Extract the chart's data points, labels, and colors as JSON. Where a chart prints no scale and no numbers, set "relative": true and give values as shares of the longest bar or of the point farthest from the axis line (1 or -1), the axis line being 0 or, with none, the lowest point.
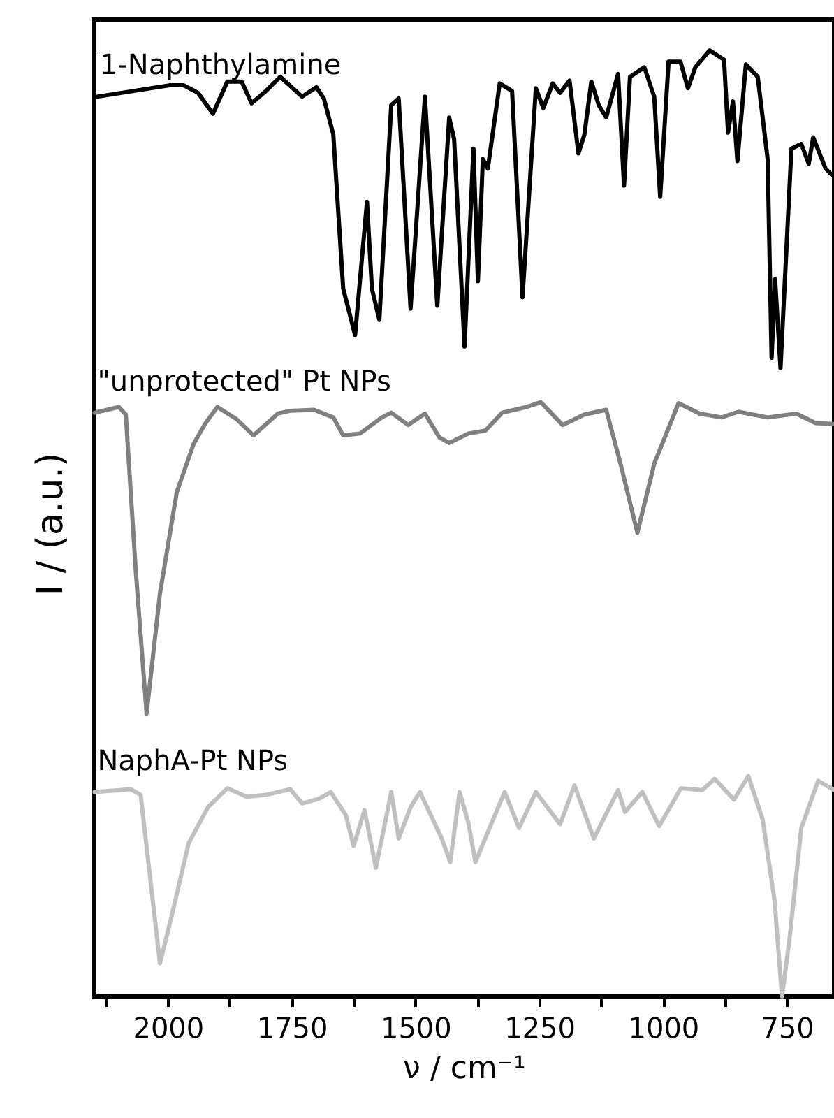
{
  "chart_data": {
    "type": "line",
    "relative": true,
    "xlabel": "ν / cm⁻¹",
    "ylabel": "I / (a.u.)",
    "xlim": [
      2150,
      655
    ],
    "xticks": [
      {
        "value": 2125,
        "label": null
      },
      2000,
      {
        "value": 1875,
        "label": null
      },
      1750,
      {
        "value": 1625,
        "label": null
      },
      1500,
      {
        "value": 1375,
        "label": null
      },
      1250,
      {
        "value": 1125,
        "label": null
      },
      1000,
      {
        "value": 875,
        "label": null
      },
      750
    ],
    "grid": false,
    "marker": "none",
    "line_style": "solid",
    "series": [
      {
        "name": "1-Naphthylamine",
        "color": "#000000",
        "x": [
          2143,
          1997,
          1968,
          1939,
          1909,
          1880,
          1851,
          1831,
          1802,
          1773,
          1729,
          1700,
          1685,
          1666,
          1646,
          1622,
          1598,
          1588,
          1573,
          1549,
          1534,
          1510,
          1481,
          1456,
          1432,
          1422,
          1401,
          1383,
          1374,
          1364,
          1354,
          1330,
          1305,
          1284,
          1257,
          1242,
          1223,
          1208,
          1189,
          1171,
          1159,
          1145,
          1130,
          1115,
          1091,
          1079,
          1067,
          1038,
          1018,
          1006,
          989,
          965,
          950,
          935,
          906,
          877,
          869,
          859,
          850,
          833,
          809,
          789,
          781,
          774,
          763,
          741,
          721,
          706,
          697,
          672,
          655
        ],
        "values": [
          0.951,
          0.963,
          0.963,
          0.955,
          0.933,
          0.967,
          0.967,
          0.944,
          0.957,
          0.972,
          0.951,
          0.961,
          0.949,
          0.911,
          0.748,
          0.699,
          0.84,
          0.748,
          0.715,
          0.942,
          0.949,
          0.727,
          0.951,
          0.73,
          0.929,
          0.906,
          0.687,
          0.896,
          0.756,
          0.885,
          0.875,
          0.965,
          0.957,
          0.739,
          0.96,
          0.939,
          0.965,
          0.955,
          0.968,
          0.891,
          0.911,
          0.967,
          0.942,
          0.929,
          0.975,
          0.857,
          0.972,
          0.982,
          0.951,
          0.845,
          0.988,
          0.988,
          0.96,
          0.982,
          1.0,
          0.99,
          0.913,
          0.946,
          0.883,
          0.985,
          0.972,
          0.885,
          0.675,
          0.758,
          0.664,
          0.896,
          0.901,
          0.88,
          0.908,
          0.875,
          0.866
        ]
      },
      {
        "name": "\"unprotected\" Pt NPs",
        "color": "#808080",
        "x": [
          2148,
          2099,
          2085,
          2065,
          2043,
          2016,
          1982,
          1948,
          1924,
          1900,
          1861,
          1827,
          1778,
          1753,
          1705,
          1666,
          1646,
          1612,
          1568,
          1549,
          1515,
          1481,
          1452,
          1432,
          1393,
          1359,
          1325,
          1276,
          1247,
          1203,
          1159,
          1115,
          1086,
          1052,
          1018,
          969,
          926,
          882,
          848,
          789,
          731,
          692,
          655
        ],
        "values": [
          0.617,
          0.623,
          0.615,
          0.451,
          0.299,
          0.426,
          0.533,
          0.584,
          0.606,
          0.623,
          0.61,
          0.593,
          0.616,
          0.619,
          0.62,
          0.612,
          0.593,
          0.595,
          0.612,
          0.617,
          0.604,
          0.616,
          0.591,
          0.585,
          0.595,
          0.598,
          0.617,
          0.623,
          0.628,
          0.604,
          0.615,
          0.62,
          0.563,
          0.49,
          0.563,
          0.627,
          0.616,
          0.612,
          0.618,
          0.612,
          0.616,
          0.606,
          0.605
        ]
      },
      {
        "name": "NaphA-Pt NPs",
        "color": "#c0c0c0",
        "x": [
          2148,
          2075,
          2055,
          2016,
          1992,
          1958,
          1919,
          1880,
          1841,
          1802,
          1753,
          1729,
          1695,
          1671,
          1641,
          1625,
          1603,
          1580,
          1549,
          1534,
          1510,
          1491,
          1447,
          1430,
          1411,
          1393,
          1379,
          1345,
          1320,
          1291,
          1257,
          1208,
          1179,
          1140,
          1091,
          1077,
          1042,
          1008,
          964,
          921,
          896,
          857,
          828,
          799,
          775,
          760,
          745,
          721,
          687,
          655
        ],
        "values": [
          0.216,
          0.219,
          0.213,
          0.035,
          0.086,
          0.162,
          0.2,
          0.22,
          0.211,
          0.213,
          0.219,
          0.204,
          0.209,
          0.216,
          0.192,
          0.159,
          0.197,
          0.136,
          0.216,
          0.167,
          0.2,
          0.216,
          0.167,
          0.142,
          0.216,
          0.183,
          0.142,
          0.185,
          0.216,
          0.178,
          0.216,
          0.182,
          0.223,
          0.167,
          0.218,
          0.195,
          0.216,
          0.18,
          0.22,
          0.218,
          0.23,
          0.208,
          0.233,
          0.187,
          0.101,
          0.0,
          0.06,
          0.178,
          0.228,
          0.218
        ]
      }
    ]
  }
}
